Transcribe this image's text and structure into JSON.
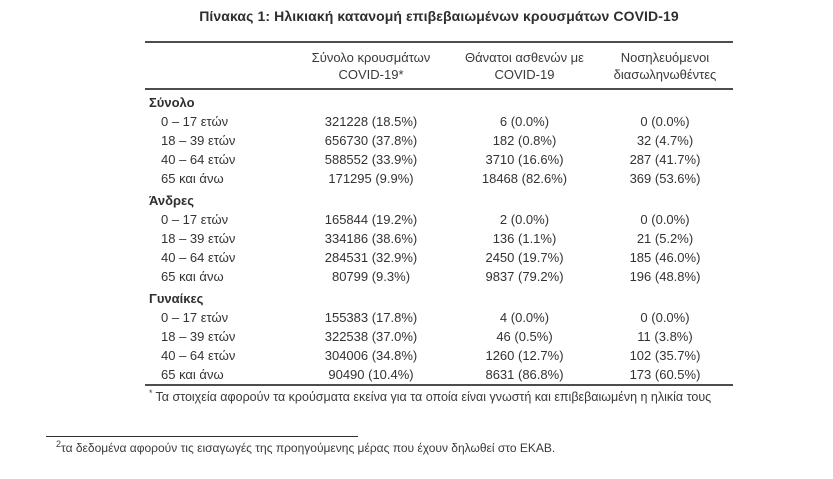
{
  "title": "Πίνακας 1: Ηλικιακή κατανομή επιβεβαιωμένων κρουσμάτων COVID-19",
  "colors": {
    "text": "#333333",
    "rule": "#4d4d4d",
    "background": "#ffffff"
  },
  "table": {
    "columns": [
      {
        "line1": "Σύνολο κρουσμάτων",
        "line2": "COVID-19*"
      },
      {
        "line1": "Θάνατοι ασθενών με",
        "line2": "COVID-19"
      },
      {
        "line1": "Νοσηλευόμενοι",
        "line2": "διασωληνωθέντες"
      }
    ],
    "sections": [
      {
        "label": "Σύνολο",
        "rows": [
          {
            "age": "0 – 17 ετών",
            "values": [
              "321228 (18.5%)",
              "6 (0.0%)",
              "0 (0.0%)"
            ]
          },
          {
            "age": "18 – 39 ετών",
            "values": [
              "656730 (37.8%)",
              "182 (0.8%)",
              "32 (4.7%)"
            ]
          },
          {
            "age": "40 – 64 ετών",
            "values": [
              "588552 (33.9%)",
              "3710 (16.6%)",
              "287 (41.7%)"
            ]
          },
          {
            "age": "65 και άνω",
            "values": [
              "171295 (9.9%)",
              "18468 (82.6%)",
              "369 (53.6%)"
            ]
          }
        ]
      },
      {
        "label": "Άνδρες",
        "rows": [
          {
            "age": "0 – 17 ετών",
            "values": [
              "165844 (19.2%)",
              "2 (0.0%)",
              "0 (0.0%)"
            ]
          },
          {
            "age": "18 – 39 ετών",
            "values": [
              "334186 (38.6%)",
              "136 (1.1%)",
              "21 (5.2%)"
            ]
          },
          {
            "age": "40 – 64 ετών",
            "values": [
              "284531 (32.9%)",
              "2450 (19.7%)",
              "185 (46.0%)"
            ]
          },
          {
            "age": "65 και άνω",
            "values": [
              "80799 (9.3%)",
              "9837 (79.2%)",
              "196 (48.8%)"
            ]
          }
        ]
      },
      {
        "label": "Γυναίκες",
        "rows": [
          {
            "age": "0 – 17 ετών",
            "values": [
              "155383 (17.8%)",
              "4 (0.0%)",
              "0 (0.0%)"
            ]
          },
          {
            "age": "18 – 39 ετών",
            "values": [
              "322538 (37.0%)",
              "46 (0.5%)",
              "11 (3.8%)"
            ]
          },
          {
            "age": "40 – 64 ετών",
            "values": [
              "304006 (34.8%)",
              "1260 (12.7%)",
              "102 (35.7%)"
            ]
          },
          {
            "age": "65 και άνω",
            "values": [
              "90490 (10.4%)",
              "8631 (86.8%)",
              "173 (60.5%)"
            ]
          }
        ]
      }
    ]
  },
  "table_footnote": {
    "marker": "*",
    "text": "Τα στοιχεία αφορούν τα κρούσματα εκείνα για τα οποία είναι γνωστή και επιβεβαιωμένη η ηλικία τους"
  },
  "page_footnote": {
    "marker": "2",
    "text": "τα δεδομένα αφορούν τις εισαγωγές της προηγούμενης μέρας που έχουν δηλωθεί στο ΕΚΑΒ."
  }
}
